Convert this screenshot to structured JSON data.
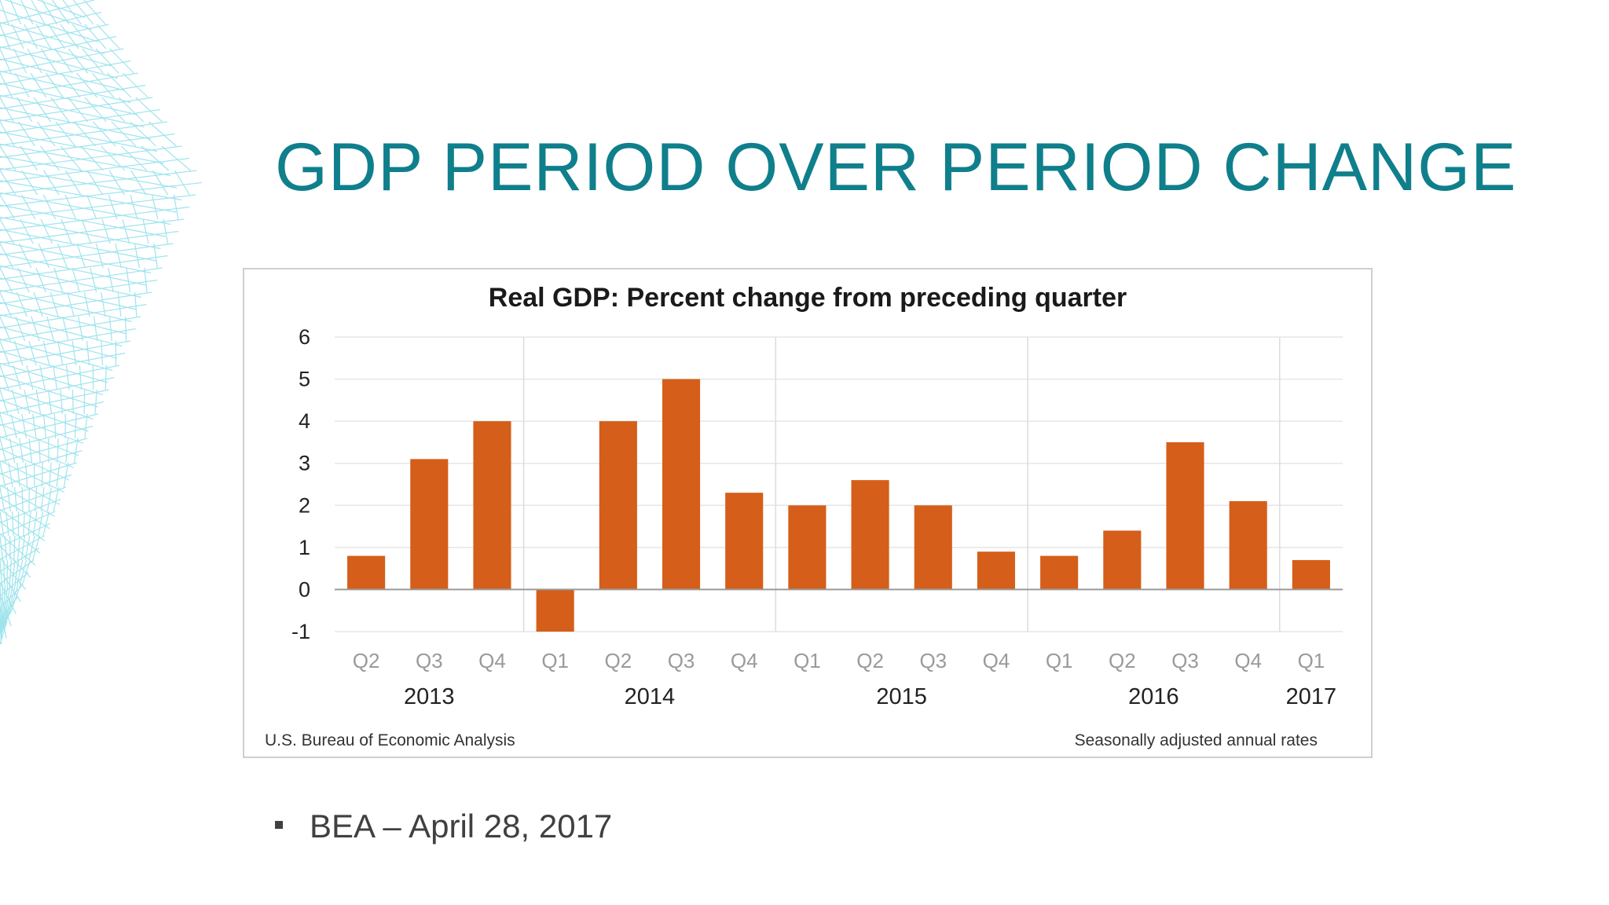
{
  "slide": {
    "title": "GDP PERIOD OVER PERIOD CHANGE",
    "bullet_text": "BEA – April 28, 2017",
    "title_color": "#0f7f8c",
    "decoration": "cyan-wireframe"
  },
  "chart_data": {
    "type": "bar",
    "title": "Real GDP:  Percent change from preceding quarter",
    "categories": [
      "Q2",
      "Q3",
      "Q4",
      "Q1",
      "Q2",
      "Q3",
      "Q4",
      "Q1",
      "Q2",
      "Q3",
      "Q4",
      "Q1",
      "Q2",
      "Q3",
      "Q4",
      "Q1"
    ],
    "year_groups": [
      {
        "label": "2013",
        "count": 3
      },
      {
        "label": "2014",
        "count": 4
      },
      {
        "label": "2015",
        "count": 4
      },
      {
        "label": "2016",
        "count": 4
      },
      {
        "label": "2017",
        "count": 1
      }
    ],
    "values": [
      0.8,
      3.1,
      4.0,
      -1.0,
      4.0,
      5.0,
      2.3,
      2.0,
      2.6,
      2.0,
      0.9,
      0.8,
      1.4,
      3.5,
      2.1,
      0.7
    ],
    "ylim": [
      -1,
      6
    ],
    "yticks": [
      "6",
      "5",
      "4",
      "3",
      "2",
      "1",
      "0",
      "-1"
    ],
    "grid": true,
    "bar_color": "#d55e1a",
    "source": "U.S. Bureau of Economic Analysis",
    "note": "Seasonally adjusted annual  rates"
  }
}
